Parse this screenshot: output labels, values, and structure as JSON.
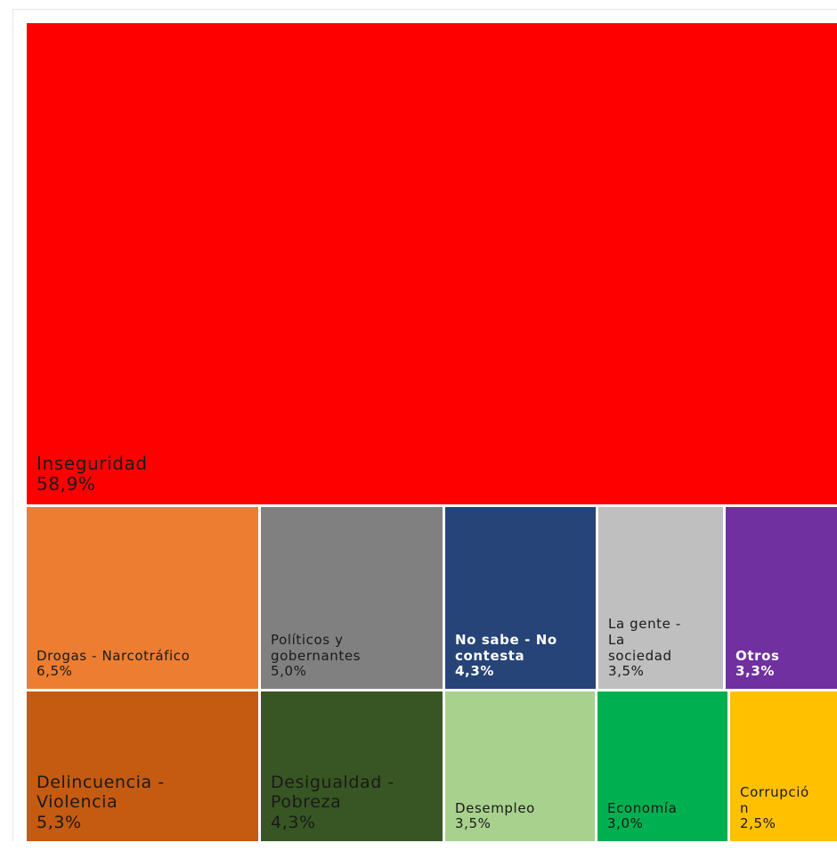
{
  "chart_data": {
    "type": "treemap",
    "items": [
      {
        "name": "Inseguridad",
        "value": "58,9%",
        "num": 58.9,
        "color": "#ff0000",
        "text_color": "#1a1a1a"
      },
      {
        "name": "Drogas - Narcotráfico",
        "value": "6,5%",
        "num": 6.5,
        "color": "#ed7d31",
        "text_color": "#1a1a1a"
      },
      {
        "name": "Políticos y gobernantes",
        "value": "5,0%",
        "num": 5.0,
        "color": "#808080",
        "text_color": "#1a1a1a"
      },
      {
        "name": "No sabe - No contesta",
        "value": "4,3%",
        "num": 4.3,
        "color": "#264478",
        "text_color": "#ffffff"
      },
      {
        "name": "La gente - La sociedad",
        "value": "3,5%",
        "num": 3.5,
        "color": "#bfbfbf",
        "text_color": "#1a1a1a"
      },
      {
        "name": "Otros",
        "value": "3,3%",
        "num": 3.3,
        "color": "#7030a0",
        "text_color": "#ffffff"
      },
      {
        "name": "Delincuencia - Violencia",
        "value": "5,3%",
        "num": 5.3,
        "color": "#c55a11",
        "text_color": "#1a1a1a"
      },
      {
        "name": "Desigualdad - Pobreza",
        "value": "4,3%",
        "num": 4.3,
        "color": "#375623",
        "text_color": "#1a1a1a"
      },
      {
        "name": "Desempleo",
        "value": "3,5%",
        "num": 3.5,
        "color": "#a9d18e",
        "text_color": "#1a1a1a"
      },
      {
        "name": "Economía",
        "value": "3,0%",
        "num": 3.0,
        "color": "#00b050",
        "text_color": "#1a1a1a"
      },
      {
        "name": "Corrupción",
        "value": "2,5%",
        "num": 2.5,
        "color": "#ffc000",
        "text_color": "#1a1a1a"
      }
    ]
  }
}
